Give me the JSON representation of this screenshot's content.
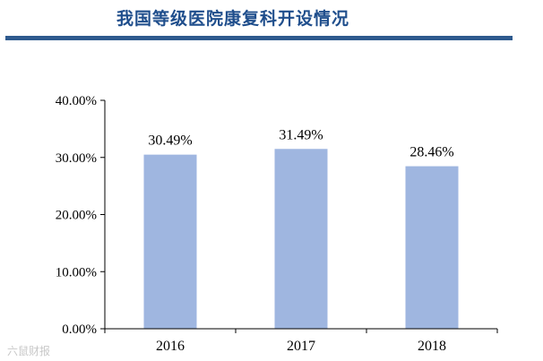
{
  "title": "我国等级医院康复科开设情况",
  "watermark": "六鼠财报",
  "colors": {
    "bar": "#9fb6e0",
    "title": "#1f4e8c",
    "rule": "#2e5a8e"
  },
  "chart_data": {
    "type": "bar",
    "categories": [
      "2016",
      "2017",
      "2018"
    ],
    "values": [
      30.49,
      31.49,
      28.46
    ],
    "data_labels": [
      "30.49%",
      "31.49%",
      "28.46%"
    ],
    "ylim": [
      0,
      40
    ],
    "yticks": [
      0,
      10,
      20,
      30,
      40
    ],
    "ytick_labels": [
      "0.00%",
      "10.00%",
      "20.00%",
      "30.00%",
      "40.00%"
    ],
    "grid": false,
    "legend": "none"
  }
}
